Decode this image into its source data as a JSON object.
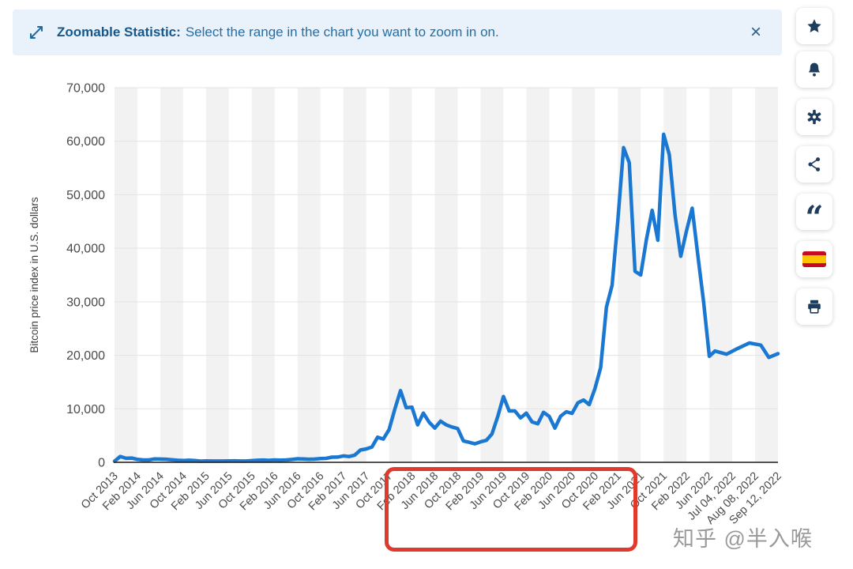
{
  "banner": {
    "label_bold": "Zoomable Statistic:",
    "label_text": "Select the range in the chart you want to zoom in on.",
    "close_symbol": "×"
  },
  "toolbar": {
    "buttons": [
      {
        "name": "favorite",
        "icon": "star-icon"
      },
      {
        "name": "notifications",
        "icon": "bell-icon"
      },
      {
        "name": "settings",
        "icon": "gear-icon"
      },
      {
        "name": "share",
        "icon": "share-icon"
      },
      {
        "name": "cite",
        "icon": "quote-icon",
        "glyph": "“"
      },
      {
        "name": "language-spanish",
        "icon": "spanish-flag-icon"
      },
      {
        "name": "print",
        "icon": "printer-icon"
      }
    ]
  },
  "watermark": "知乎 @半入喉",
  "chart_data": {
    "type": "line",
    "ylabel": "Bitcoin price index in U.S. dollars",
    "xlabel": "",
    "ylim": [
      0,
      70000
    ],
    "y_ticks": [
      0,
      10000,
      20000,
      30000,
      40000,
      50000,
      60000,
      70000
    ],
    "y_tick_labels": [
      "0",
      "10,000",
      "20,000",
      "30,000",
      "40,000",
      "50,000",
      "60,000",
      "70,000"
    ],
    "x_tick_labels": [
      "Oct 2013",
      "Feb 2014",
      "Jun 2014",
      "Oct 2014",
      "Feb 2015",
      "Jun 2015",
      "Oct 2015",
      "Feb 2016",
      "Jun 2016",
      "Oct 2016",
      "Feb 2017",
      "Jun 2017",
      "Oct 2017",
      "Feb 2018",
      "Jun 2018",
      "Oct 2018",
      "Feb 2019",
      "Jun 2019",
      "Oct 2019",
      "Feb 2020",
      "Jun 2020",
      "Oct 2020",
      "Feb 2021",
      "Jun 2021",
      "Oct 2021",
      "Feb 2022",
      "Jun 2022",
      "Jul 04, 2022",
      "Aug 08, 2022",
      "Sep 12, 2022"
    ],
    "grid": true,
    "background_stripes": true,
    "stripe_color": "#f2f2f2",
    "line_color": "#1a78d2",
    "highlighted_x_range": {
      "from": "Feb 2018",
      "to": "Jun 2021",
      "style": "red-box"
    },
    "series": [
      {
        "name": "Bitcoin price index in U.S. dollars",
        "points": [
          [
            0,
            200
          ],
          [
            0.25,
            1100
          ],
          [
            0.5,
            750
          ],
          [
            0.75,
            800
          ],
          [
            1,
            550
          ],
          [
            1.25,
            450
          ],
          [
            1.5,
            450
          ],
          [
            1.75,
            630
          ],
          [
            2,
            600
          ],
          [
            2.25,
            580
          ],
          [
            2.5,
            480
          ],
          [
            2.75,
            390
          ],
          [
            3,
            340
          ],
          [
            3.25,
            380
          ],
          [
            3.5,
            320
          ],
          [
            3.75,
            220
          ],
          [
            4,
            250
          ],
          [
            4.25,
            240
          ],
          [
            4.5,
            240
          ],
          [
            4.75,
            230
          ],
          [
            5,
            260
          ],
          [
            5.25,
            280
          ],
          [
            5.5,
            230
          ],
          [
            5.75,
            240
          ],
          [
            6,
            310
          ],
          [
            6.25,
            380
          ],
          [
            6.5,
            430
          ],
          [
            6.75,
            370
          ],
          [
            7,
            440
          ],
          [
            7.25,
            420
          ],
          [
            7.5,
            450
          ],
          [
            7.75,
            530
          ],
          [
            8,
            670
          ],
          [
            8.25,
            620
          ],
          [
            8.5,
            580
          ],
          [
            8.75,
            610
          ],
          [
            9,
            700
          ],
          [
            9.25,
            740
          ],
          [
            9.5,
            960
          ],
          [
            9.75,
            970
          ],
          [
            10,
            1190
          ],
          [
            10.25,
            1080
          ],
          [
            10.5,
            1350
          ],
          [
            10.75,
            2300
          ],
          [
            11,
            2500
          ],
          [
            11.25,
            2870
          ],
          [
            11.5,
            4700
          ],
          [
            11.75,
            4340
          ],
          [
            12,
            6100
          ],
          [
            12.25,
            9900
          ],
          [
            12.5,
            13400
          ],
          [
            12.75,
            10200
          ],
          [
            13,
            10300
          ],
          [
            13.25,
            7000
          ],
          [
            13.5,
            9200
          ],
          [
            13.75,
            7500
          ],
          [
            14,
            6400
          ],
          [
            14.25,
            7700
          ],
          [
            14.5,
            7000
          ],
          [
            14.75,
            6600
          ],
          [
            15,
            6300
          ],
          [
            15.25,
            4000
          ],
          [
            15.5,
            3740
          ],
          [
            15.75,
            3460
          ],
          [
            16,
            3820
          ],
          [
            16.25,
            4100
          ],
          [
            16.5,
            5300
          ],
          [
            16.75,
            8550
          ],
          [
            17,
            12300
          ],
          [
            17.25,
            9600
          ],
          [
            17.5,
            9600
          ],
          [
            17.75,
            8300
          ],
          [
            18,
            9200
          ],
          [
            18.25,
            7550
          ],
          [
            18.5,
            7200
          ],
          [
            18.75,
            9350
          ],
          [
            19,
            8600
          ],
          [
            19.25,
            6400
          ],
          [
            19.5,
            8620
          ],
          [
            19.75,
            9450
          ],
          [
            20,
            9140
          ],
          [
            20.25,
            11100
          ],
          [
            20.5,
            11650
          ],
          [
            20.75,
            10780
          ],
          [
            21,
            13800
          ],
          [
            21.25,
            17700
          ],
          [
            21.5,
            28990
          ],
          [
            21.75,
            33100
          ],
          [
            22,
            45100
          ],
          [
            22.25,
            58800
          ],
          [
            22.5,
            56000
          ],
          [
            22.75,
            35700
          ],
          [
            23,
            35000
          ],
          [
            23.25,
            41600
          ],
          [
            23.5,
            47100
          ],
          [
            23.75,
            41500
          ],
          [
            24,
            61300
          ],
          [
            24.25,
            57500
          ],
          [
            24.5,
            46200
          ],
          [
            24.75,
            38500
          ],
          [
            25,
            43200
          ],
          [
            25.25,
            47500
          ],
          [
            25.5,
            38600
          ],
          [
            25.75,
            29900
          ],
          [
            26,
            19800
          ],
          [
            26.25,
            20800
          ],
          [
            26.75,
            20200
          ],
          [
            27.25,
            21300
          ],
          [
            27.75,
            22300
          ],
          [
            28.25,
            21900
          ],
          [
            28.6,
            19600
          ],
          [
            29,
            20300
          ]
        ]
      }
    ]
  }
}
